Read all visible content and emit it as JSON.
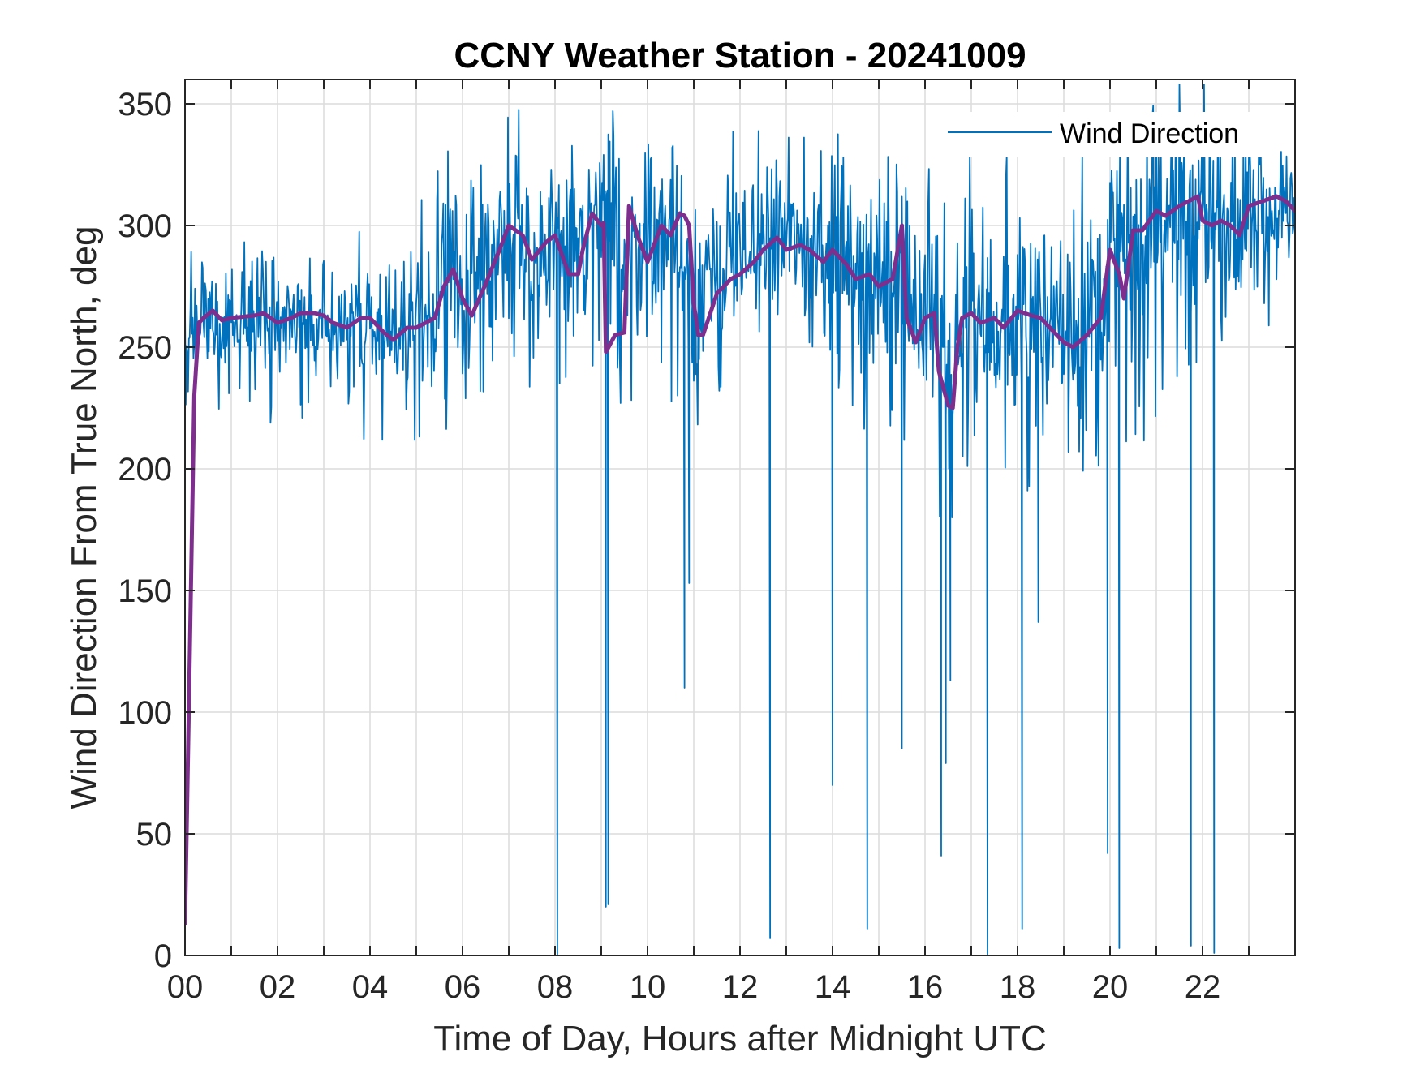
{
  "chart_data": {
    "type": "line",
    "title": "CCNY Weather Station - 20241009",
    "xlabel": "Time of Day, Hours after Midnight UTC",
    "ylabel": "Wind Direction From True North, deg",
    "xlim": [
      0,
      24
    ],
    "ylim": [
      0,
      360
    ],
    "xticks": [
      0,
      2,
      4,
      6,
      8,
      10,
      12,
      14,
      16,
      18,
      20,
      22
    ],
    "xtick_labels": [
      "00",
      "02",
      "04",
      "06",
      "08",
      "10",
      "12",
      "14",
      "16",
      "18",
      "20",
      "22"
    ],
    "yticks": [
      0,
      50,
      100,
      150,
      200,
      250,
      300,
      350
    ],
    "ytick_labels": [
      "0",
      "50",
      "100",
      "150",
      "200",
      "250",
      "300",
      "350"
    ],
    "grid": true,
    "legend": {
      "location": "top-right",
      "entries": [
        "Wind Direction"
      ]
    },
    "series": [
      {
        "name": "Wind Direction",
        "color": "#0072BD",
        "style": "raw noisy 1-minute samples",
        "x": [
          0.0,
          0.5,
          1.0,
          1.5,
          2.0,
          2.5,
          3.0,
          3.5,
          4.0,
          4.5,
          5.0,
          5.5,
          6.0,
          6.5,
          7.0,
          7.5,
          8.0,
          8.5,
          9.0,
          9.5,
          10.0,
          10.5,
          11.0,
          11.5,
          12.0,
          12.5,
          13.0,
          13.5,
          14.0,
          14.5,
          15.0,
          15.5,
          16.0,
          16.5,
          17.0,
          17.5,
          18.0,
          18.5,
          19.0,
          19.5,
          20.0,
          20.5,
          21.0,
          21.5,
          22.0,
          22.5,
          23.0,
          23.5,
          24.0
        ],
        "y_center": [
          255,
          262,
          262,
          261,
          262,
          262,
          263,
          258,
          261,
          256,
          258,
          266,
          270,
          290,
          297,
          288,
          288,
          290,
          300,
          290,
          296,
          302,
          268,
          278,
          285,
          292,
          295,
          290,
          288,
          285,
          280,
          278,
          262,
          250,
          260,
          262,
          263,
          262,
          252,
          265,
          290,
          285,
          302,
          308,
          304,
          302,
          305,
          308,
          305
        ],
        "y_spread": [
          22,
          18,
          16,
          16,
          16,
          16,
          16,
          18,
          18,
          20,
          22,
          28,
          30,
          28,
          26,
          24,
          30,
          26,
          28,
          26,
          26,
          28,
          28,
          26,
          24,
          24,
          24,
          24,
          26,
          26,
          26,
          26,
          36,
          36,
          30,
          30,
          28,
          26,
          26,
          30,
          30,
          32,
          30,
          28,
          28,
          24,
          20,
          18,
          16
        ],
        "spikes": [
          {
            "x": 8.05,
            "y": 0
          },
          {
            "x": 8.1,
            "y": 235
          },
          {
            "x": 9.1,
            "y": 20
          },
          {
            "x": 9.15,
            "y": 21
          },
          {
            "x": 10.8,
            "y": 110
          },
          {
            "x": 10.9,
            "y": 153
          },
          {
            "x": 12.65,
            "y": 7
          },
          {
            "x": 14.0,
            "y": 70
          },
          {
            "x": 14.75,
            "y": 11
          },
          {
            "x": 15.5,
            "y": 85
          },
          {
            "x": 16.35,
            "y": 41
          },
          {
            "x": 16.45,
            "y": 79
          },
          {
            "x": 16.55,
            "y": 113
          },
          {
            "x": 17.35,
            "y": 0
          },
          {
            "x": 18.1,
            "y": 11
          },
          {
            "x": 18.45,
            "y": 137
          },
          {
            "x": 19.95,
            "y": 42
          },
          {
            "x": 20.2,
            "y": 3
          },
          {
            "x": 21.75,
            "y": 4
          },
          {
            "x": 22.25,
            "y": 1
          }
        ]
      },
      {
        "name": "",
        "color": "#7E2F8E",
        "style": "smoothed running mean",
        "x": [
          0.0,
          0.1,
          0.2,
          0.3,
          0.4,
          0.6,
          0.8,
          1.0,
          1.5,
          1.7,
          2.0,
          2.3,
          2.5,
          2.8,
          3.0,
          3.2,
          3.5,
          3.8,
          4.0,
          4.3,
          4.5,
          4.8,
          5.0,
          5.2,
          5.4,
          5.6,
          5.8,
          6.0,
          6.2,
          6.5,
          6.8,
          7.0,
          7.3,
          7.5,
          7.8,
          8.0,
          8.3,
          8.5,
          8.6,
          8.8,
          9.0,
          9.05,
          9.1,
          9.3,
          9.5,
          9.6,
          9.8,
          10.0,
          10.3,
          10.5,
          10.7,
          10.8,
          10.9,
          11.0,
          11.1,
          11.2,
          11.5,
          11.8,
          12.0,
          12.3,
          12.5,
          12.8,
          13.0,
          13.3,
          13.5,
          13.8,
          14.0,
          14.3,
          14.5,
          14.8,
          15.0,
          15.3,
          15.5,
          15.6,
          15.8,
          16.0,
          16.2,
          16.3,
          16.5,
          16.6,
          16.7,
          16.8,
          17.0,
          17.2,
          17.5,
          17.7,
          18.0,
          18.3,
          18.5,
          18.7,
          19.0,
          19.2,
          19.5,
          19.8,
          20.0,
          20.2,
          20.3,
          20.5,
          20.7,
          21.0,
          21.2,
          21.5,
          21.7,
          21.9,
          22.0,
          22.2,
          22.4,
          22.6,
          22.8,
          23.0,
          23.3,
          23.6,
          23.8,
          24.0
        ],
        "y": [
          13,
          120,
          230,
          260,
          262,
          265,
          261,
          262,
          263,
          264,
          260,
          262,
          264,
          264,
          263,
          260,
          258,
          262,
          262,
          256,
          253,
          258,
          258,
          260,
          262,
          275,
          282,
          270,
          263,
          276,
          290,
          300,
          296,
          286,
          293,
          296,
          280,
          280,
          290,
          305,
          300,
          301,
          248,
          255,
          256,
          308,
          295,
          285,
          300,
          296,
          305,
          304,
          300,
          268,
          255,
          255,
          272,
          278,
          280,
          285,
          290,
          295,
          290,
          292,
          290,
          285,
          290,
          284,
          278,
          280,
          275,
          278,
          300,
          262,
          252,
          262,
          264,
          240,
          226,
          225,
          250,
          262,
          264,
          260,
          262,
          258,
          265,
          263,
          262,
          258,
          252,
          250,
          255,
          262,
          290,
          280,
          270,
          298,
          298,
          306,
          304,
          308,
          310,
          312,
          302,
          300,
          302,
          300,
          296,
          308,
          310,
          312,
          310,
          306
        ]
      }
    ]
  }
}
